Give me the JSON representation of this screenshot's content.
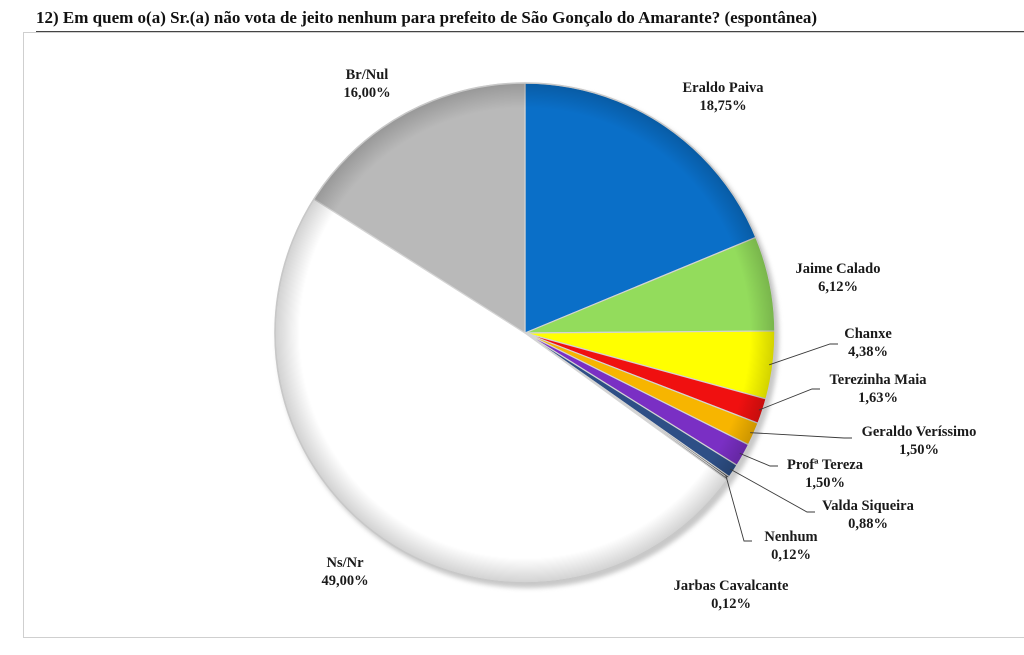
{
  "title": "12) Em quem o(a) Sr.(a) não vota de jeito nenhum para prefeito de São Gonçalo do Amarante? (espontânea)",
  "chart_data": {
    "type": "pie",
    "title": "12) Em quem o(a) Sr.(a) não vota de jeito nenhum para prefeito de São Gonçalo do Amarante? (espontânea)",
    "start_angle_deg": 0,
    "direction": "clockwise",
    "slices": [
      {
        "name": "Eraldo Paiva",
        "value": 18.75,
        "label": "18,75%",
        "color": "#0a6fc8"
      },
      {
        "name": "Jaime Calado",
        "value": 6.12,
        "label": "6,12%",
        "color": "#93dc5c"
      },
      {
        "name": "Chanxe",
        "value": 4.38,
        "label": "4,38%",
        "color": "#ffff00"
      },
      {
        "name": "Terezinha Maia",
        "value": 1.63,
        "label": "1,63%",
        "color": "#f01010"
      },
      {
        "name": "Geraldo Veríssimo",
        "value": 1.5,
        "label": "1,50%",
        "color": "#f7b500"
      },
      {
        "name": "Profª Tereza",
        "value": 1.5,
        "label": "1,50%",
        "color": "#7a2fc4"
      },
      {
        "name": "Valda Siqueira",
        "value": 0.88,
        "label": "0,88%",
        "color": "#2e4f86"
      },
      {
        "name": "Nenhum",
        "value": 0.12,
        "label": "0,12%",
        "color": "#1a1a1a"
      },
      {
        "name": "Jarbas Cavalcante",
        "value": 0.12,
        "label": "0,12%",
        "color": "#555555"
      },
      {
        "name": "Ns/Nr",
        "value": 49.0,
        "label": "49,00%",
        "color": "#ffffff"
      },
      {
        "name": "Br/Nul",
        "value": 16.0,
        "label": "16,00%",
        "color": "#b9b9b9"
      }
    ]
  }
}
